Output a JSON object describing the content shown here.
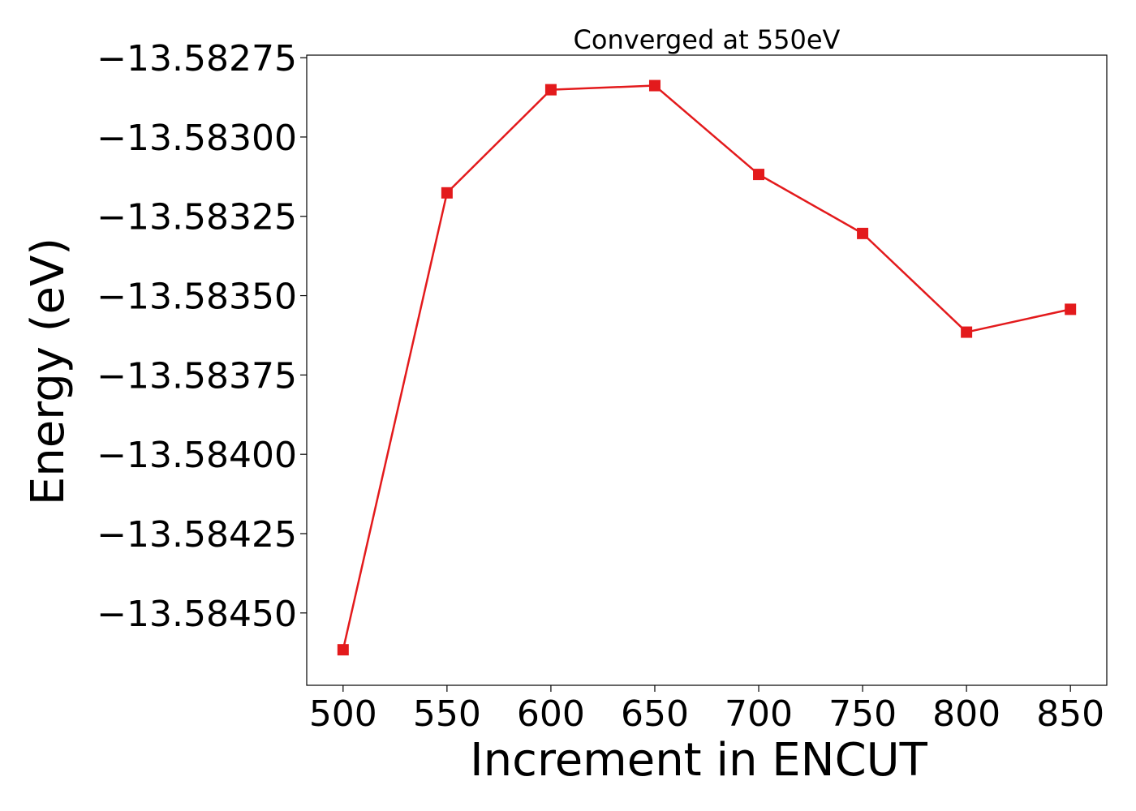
{
  "chart_data": {
    "type": "line",
    "title": "Converged at 550eV",
    "xlabel": "Increment in ENCUT",
    "ylabel": "Energy (eV)",
    "x": [
      500,
      550,
      600,
      650,
      700,
      750,
      800,
      850
    ],
    "series": [
      {
        "values": [
          -13.584616,
          -13.583176,
          -13.582851,
          -13.582838,
          -13.583118,
          -13.583304,
          -13.583615,
          -13.583543
        ],
        "color": "#e31a1c",
        "marker": "square"
      }
    ],
    "xlim": [
      482.5,
      867.5
    ],
    "ylim": [
      -13.584728,
      -13.582742
    ],
    "xticks": [
      500,
      550,
      600,
      650,
      700,
      750,
      800,
      850
    ],
    "xtick_labels": [
      "500",
      "550",
      "600",
      "650",
      "700",
      "750",
      "800",
      "850"
    ],
    "yticks": [
      -13.58275,
      -13.583,
      -13.58325,
      -13.5835,
      -13.58375,
      -13.584,
      -13.58425,
      -13.5845
    ],
    "ytick_labels": [
      "−13.58275",
      "−13.58300",
      "−13.58325",
      "−13.58350",
      "−13.58375",
      "−13.58400",
      "−13.58425",
      "−13.58450"
    ],
    "grid": false,
    "legend": false
  }
}
